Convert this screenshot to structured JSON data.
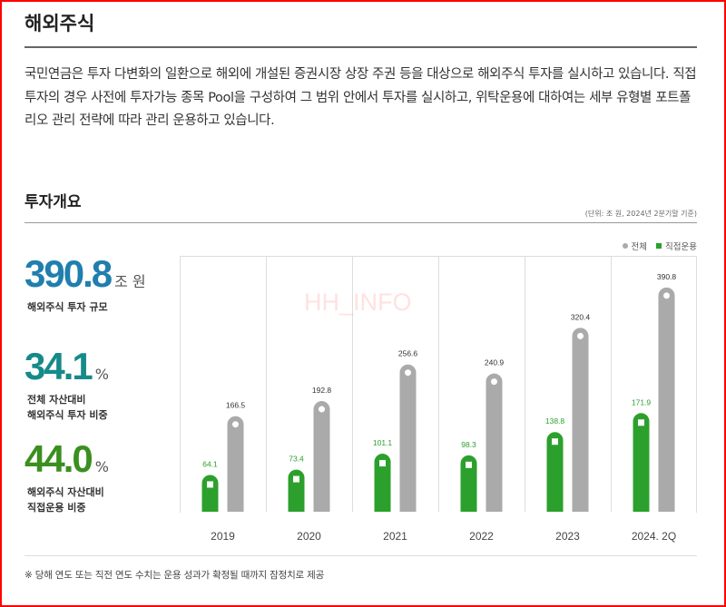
{
  "page": {
    "title": "해외주식",
    "intro": "국민연금은 투자 다변화의 일환으로 해외에 개설된 증권시장 상장 주권 등을 대상으로 해외주식 투자를 실시하고 있습니다. 직접투자의 경우 사전에 투자가능 종목 Pool을 구성하여 그 범위 안에서 투자를 실시하고, 위탁운용에 대하여는 세부 유형별 포트폴리오 관리 전략에 따라 관리 운용하고 있습니다.",
    "section_title": "투자개요",
    "unit_note": "(단위: 조 원, 2024년 2분기말 기준)",
    "footnote": "※  당해 연도 또는 직전 연도 수치는 운용 성과가 확정될 때까지 잠정치로 제공",
    "watermark": "HH_INFO"
  },
  "kpis": [
    {
      "value": "390.8",
      "unit": "조 원",
      "label": "해외주식 투자 규모",
      "color": "#1f7fae"
    },
    {
      "value": "34.1",
      "unit": "%",
      "label": "전체 자산대비\n해외주식 투자 비중",
      "color": "#168a8a"
    },
    {
      "value": "44.0",
      "unit": "%",
      "label": "해외주식 자산대비\n직접운용 비중",
      "color": "#3a8f1f"
    }
  ],
  "colors": {
    "total": "#aaaaaa",
    "direct": "#2ca02c",
    "grid": "#dddddd"
  },
  "chart_data": {
    "type": "bar",
    "categories": [
      "2019",
      "2020",
      "2021",
      "2022",
      "2023",
      "2024. 2Q"
    ],
    "series": [
      {
        "name": "직접운용",
        "values": [
          64.1,
          73.4,
          101.1,
          98.3,
          138.8,
          171.9
        ]
      },
      {
        "name": "전체",
        "values": [
          166.5,
          192.8,
          256.6,
          240.9,
          320.4,
          390.8
        ]
      }
    ],
    "legend": [
      "전체",
      "직접운용"
    ],
    "legend_position": "top-right",
    "unit": "조 원",
    "ylim": [
      0,
      400
    ],
    "grid": true
  }
}
